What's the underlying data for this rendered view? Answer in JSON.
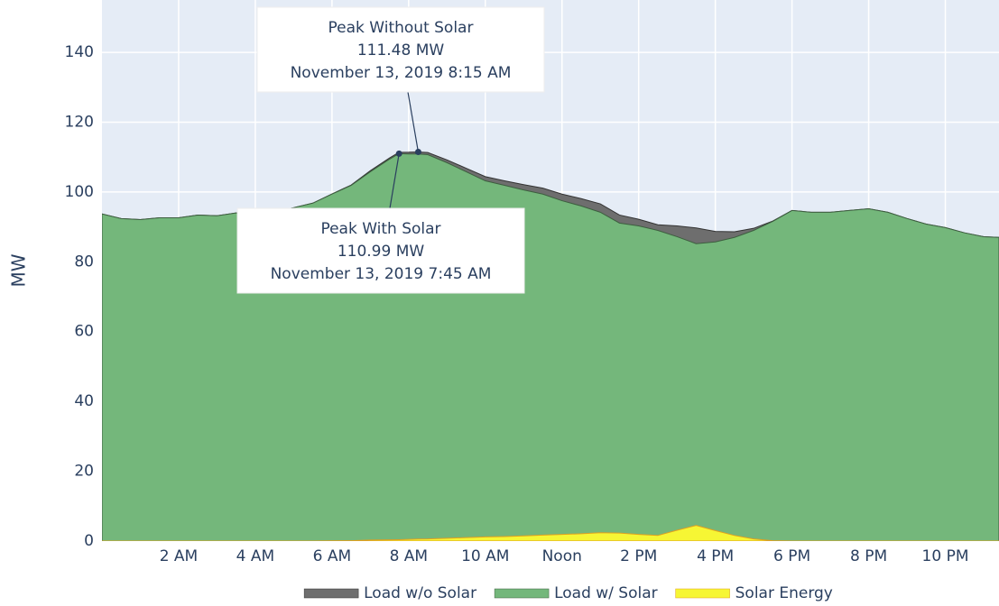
{
  "chart_data": {
    "type": "area",
    "y_label": "MW",
    "x": [
      0,
      0.5,
      1,
      1.5,
      2,
      2.5,
      3,
      3.5,
      4,
      4.5,
      5,
      5.5,
      6,
      6.5,
      7,
      7.5,
      7.75,
      8,
      8.25,
      8.5,
      9,
      9.5,
      10,
      10.5,
      11,
      11.5,
      12,
      12.5,
      13,
      13.5,
      14,
      14.5,
      15,
      15.5,
      16,
      16.5,
      17,
      17.5,
      18,
      18.5,
      19,
      19.5,
      20,
      20.5,
      21,
      21.5,
      22,
      22.5,
      23,
      23.4
    ],
    "series": [
      {
        "name": "Load w/o Solar",
        "color": "#6e6e6e",
        "line_color": "#333333",
        "values": [
          93.7,
          92.4,
          92.1,
          92.6,
          92.6,
          93.4,
          93.2,
          94,
          93.4,
          94.4,
          95.5,
          96.8,
          99.45,
          102,
          106.1,
          109.75,
          111.39,
          111.4,
          111.48,
          111.3,
          109.2,
          106.8,
          104.4,
          103.2,
          102.1,
          101.1,
          99.4,
          98.1,
          96.6,
          93.4,
          92.2,
          90.6,
          90.3,
          89.7,
          88.7,
          88.6,
          89.6,
          91.7,
          94.7,
          94.2,
          94.2,
          94.7,
          95.2,
          94.2,
          92.4,
          90.8,
          89.8,
          88.3,
          87.2,
          87
        ]
      },
      {
        "name": "Load w/ Solar",
        "color": "#74b77b",
        "line_color": "#3d5e3f",
        "values": [
          93.7,
          92.4,
          92.1,
          92.6,
          92.6,
          93.4,
          93.2,
          94,
          93.4,
          94.4,
          95.5,
          96.8,
          99.4,
          101.9,
          105.8,
          109.4,
          110.99,
          110.9,
          110.9,
          110.7,
          108.4,
          105.8,
          103.2,
          101.9,
          100.6,
          99.4,
          97.5,
          96,
          94.2,
          91.1,
          90.3,
          89,
          87.2,
          85.2,
          85.7,
          87,
          89,
          91.6,
          94.7,
          94.2,
          94.2,
          94.7,
          95.2,
          94.2,
          92.4,
          90.8,
          89.8,
          88.3,
          87.2,
          87
        ]
      },
      {
        "name": "Solar Energy",
        "color": "#f6f634",
        "line_color": "#e0a020",
        "values": [
          0,
          0,
          0,
          0,
          0,
          0,
          0,
          0,
          0,
          0,
          0,
          0,
          0.05,
          0.1,
          0.3,
          0.35,
          0.4,
          0.5,
          0.58,
          0.6,
          0.8,
          1,
          1.2,
          1.3,
          1.5,
          1.7,
          1.9,
          2.1,
          2.4,
          2.3,
          1.9,
          1.6,
          3.1,
          4.5,
          3,
          1.6,
          0.6,
          0.1,
          0,
          0,
          0,
          0,
          0,
          0,
          0,
          0,
          0,
          0,
          0,
          0
        ]
      }
    ],
    "xlim": [
      0,
      23.4
    ],
    "xticks": [
      {
        "value": 2,
        "label": "2 AM"
      },
      {
        "value": 4,
        "label": "4 AM"
      },
      {
        "value": 6,
        "label": "6 AM"
      },
      {
        "value": 8,
        "label": "8 AM"
      },
      {
        "value": 10,
        "label": "10 AM"
      },
      {
        "value": 12,
        "label": "Noon"
      },
      {
        "value": 14,
        "label": "2 PM"
      },
      {
        "value": 16,
        "label": "4 PM"
      },
      {
        "value": 18,
        "label": "6 PM"
      },
      {
        "value": 20,
        "label": "8 PM"
      },
      {
        "value": 22,
        "label": "10 PM"
      }
    ],
    "ylim": [
      0,
      155
    ],
    "yticks": [
      0,
      20,
      40,
      60,
      80,
      100,
      120,
      140
    ],
    "grid": true,
    "legend": "bottom",
    "annotations": [
      {
        "lines": [
          "Peak Without Solar",
          "111.48 MW",
          "November 13, 2019 8:15 AM"
        ],
        "x": 8.25,
        "y": 111.48
      },
      {
        "lines": [
          "Peak With Solar",
          "110.99 MW",
          "November 13, 2019 7:45 AM"
        ],
        "x": 7.75,
        "y": 110.99
      }
    ]
  }
}
